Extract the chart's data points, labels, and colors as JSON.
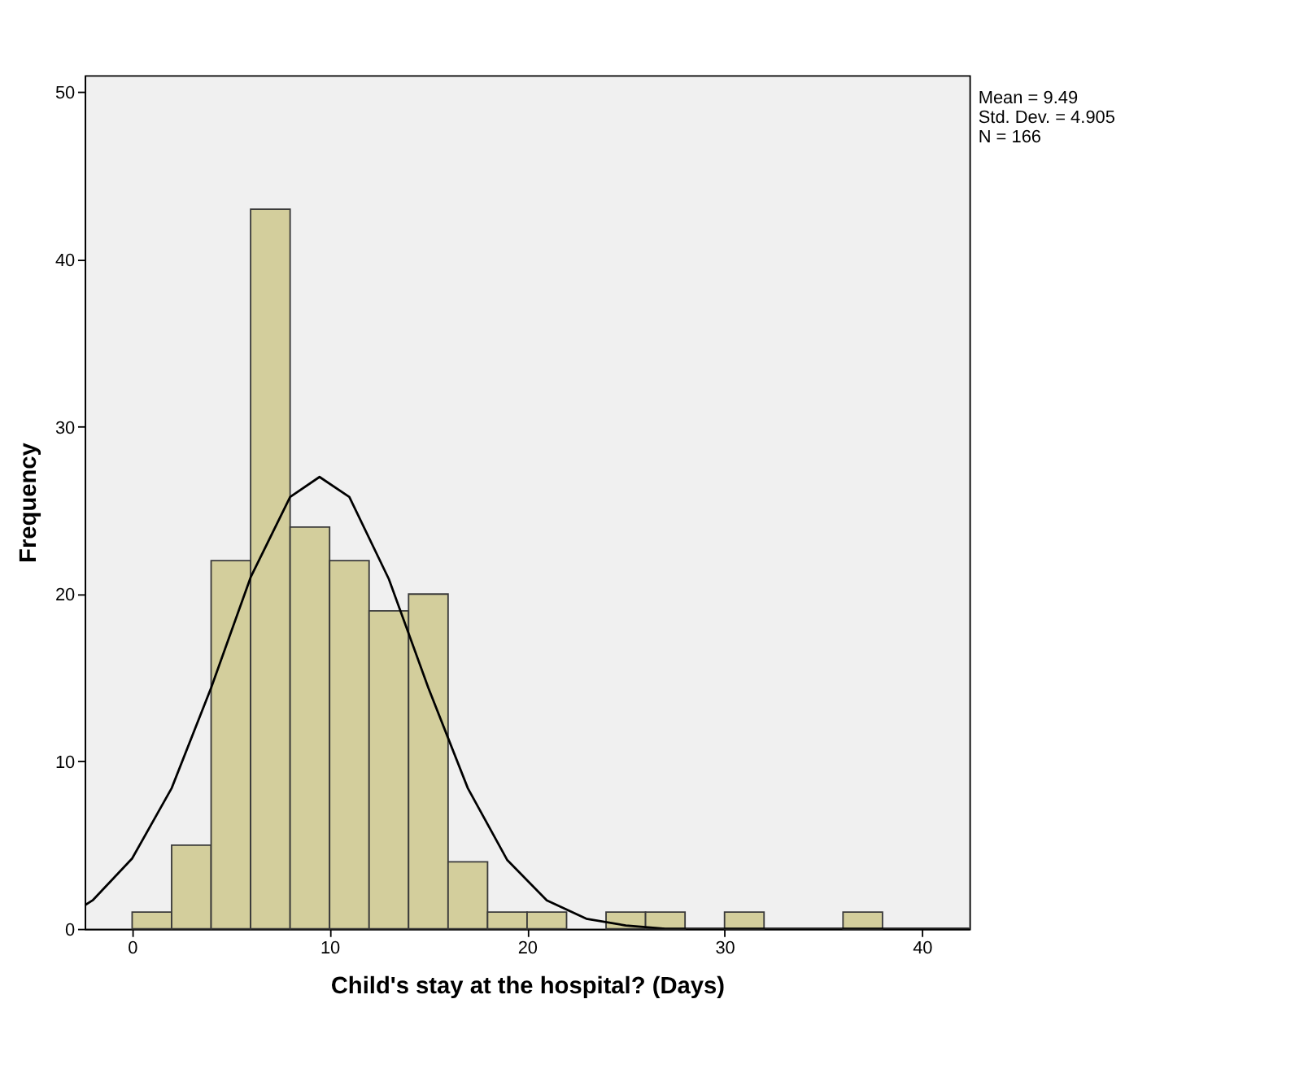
{
  "chart_data": {
    "type": "histogram",
    "xlabel": "Child's stay at the hospital? (Days)",
    "ylabel": "Frequency",
    "bins": [
      0,
      2,
      4,
      6,
      8,
      10,
      12,
      14,
      16,
      18,
      20,
      22,
      24,
      26,
      28,
      30,
      32,
      34,
      36,
      38
    ],
    "values": [
      1,
      5,
      22,
      43,
      24,
      22,
      19,
      20,
      4,
      1,
      1,
      0,
      1,
      1,
      0,
      1,
      0,
      0,
      1
    ],
    "color": "#d3ce9c",
    "series": [
      {
        "type": "line",
        "color": "#000000",
        "x": [
          -2.4,
          -2,
          0,
          2,
          4,
          6,
          8,
          9.49,
          11,
          13,
          15,
          17,
          19,
          21,
          23,
          25,
          27,
          30,
          35,
          42.4
        ],
        "values": [
          1.4,
          1.7,
          4.2,
          8.4,
          14.4,
          21,
          25.8,
          27,
          25.8,
          20.9,
          14.4,
          8.4,
          4.1,
          1.7,
          0.6,
          0.2,
          0,
          0,
          0,
          0
        ]
      }
    ],
    "xlim": [
      -2.4,
      42.4
    ],
    "xticks": [
      0,
      10,
      20,
      30,
      40
    ],
    "ylim": [
      0,
      51
    ],
    "yticks": [
      0,
      10,
      20,
      30,
      40,
      50
    ],
    "grid": false,
    "legend": false,
    "annotations": [
      "Mean = 9.49",
      "Std. Dev. = 4.905",
      "N = 166"
    ]
  }
}
